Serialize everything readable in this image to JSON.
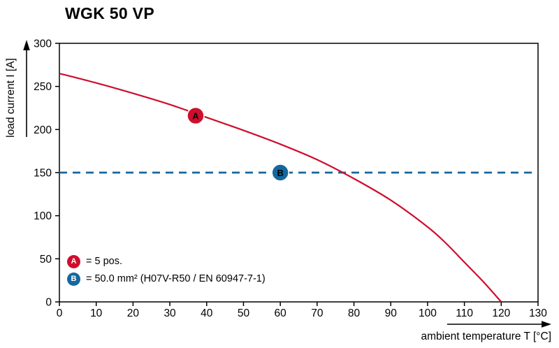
{
  "title": "WGK 50 VP",
  "legend": {
    "items": [
      {
        "badge": "A",
        "text": "= 5 pos.",
        "color": "#ce0e2d"
      },
      {
        "badge": "B",
        "text": "= 50.0 mm² (H07V-R50 / EN 60947-7-1)",
        "color": "#15679d"
      }
    ]
  },
  "chart_data": {
    "type": "line",
    "title": "WGK 50 VP",
    "xlabel": "ambient temperature T [°C]",
    "ylabel": "load current I [A]",
    "xlim": [
      0,
      130
    ],
    "ylim": [
      0,
      300
    ],
    "xtick_step": 10,
    "ytick_step": 50,
    "grid": false,
    "legend_position": "bottom-left",
    "series": [
      {
        "name": "A",
        "label": "= 5 pos.",
        "color": "#ce0e2d",
        "style": "solid",
        "width": 2.2,
        "points": [
          [
            0,
            265
          ],
          [
            10,
            254
          ],
          [
            20,
            242
          ],
          [
            30,
            229
          ],
          [
            40,
            214
          ],
          [
            50,
            199
          ],
          [
            60,
            183
          ],
          [
            70,
            165
          ],
          [
            80,
            143
          ],
          [
            90,
            118
          ],
          [
            100,
            87
          ],
          [
            105,
            68
          ],
          [
            110,
            46
          ],
          [
            115,
            24
          ],
          [
            120,
            0
          ]
        ],
        "marker": {
          "x": 37,
          "y": 216,
          "label": "A"
        }
      },
      {
        "name": "B",
        "label": "= 50.0 mm² (H07V-R50 / EN 60947-7-1)",
        "color": "#15679d",
        "style": "dashed",
        "width": 2.8,
        "points": [
          [
            0,
            150
          ],
          [
            130,
            150
          ]
        ],
        "marker": {
          "x": 60,
          "y": 150,
          "label": "B"
        }
      }
    ]
  }
}
